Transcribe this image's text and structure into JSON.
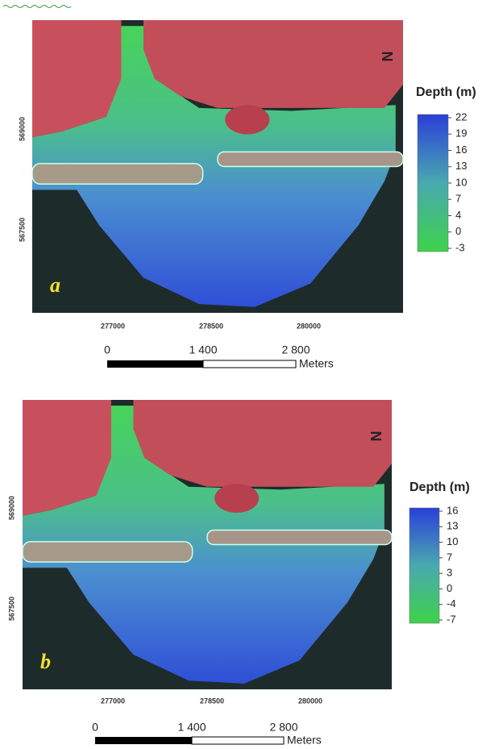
{
  "panels": [
    {
      "label": "a",
      "legend_title": "Depth (m)",
      "legend_ticks": [
        22,
        19,
        16,
        13,
        10,
        7,
        4,
        0,
        -3
      ],
      "x_ticks": [
        "277000",
        "278500",
        "280000"
      ],
      "y_ticks": [
        "569000",
        "567500"
      ],
      "scale_labels": [
        "0",
        "1 400",
        "2 800"
      ],
      "scale_unit": "Meters"
    },
    {
      "label": "b",
      "legend_title": "Depth (m)",
      "legend_ticks": [
        16,
        13,
        10,
        7,
        3,
        0,
        -4,
        -7
      ],
      "x_ticks": [
        "277000",
        "278500",
        "280000"
      ],
      "y_ticks": [
        "569000",
        "567500"
      ],
      "scale_labels": [
        "0",
        "1 400",
        "2 800"
      ],
      "scale_unit": "Meters"
    }
  ]
}
